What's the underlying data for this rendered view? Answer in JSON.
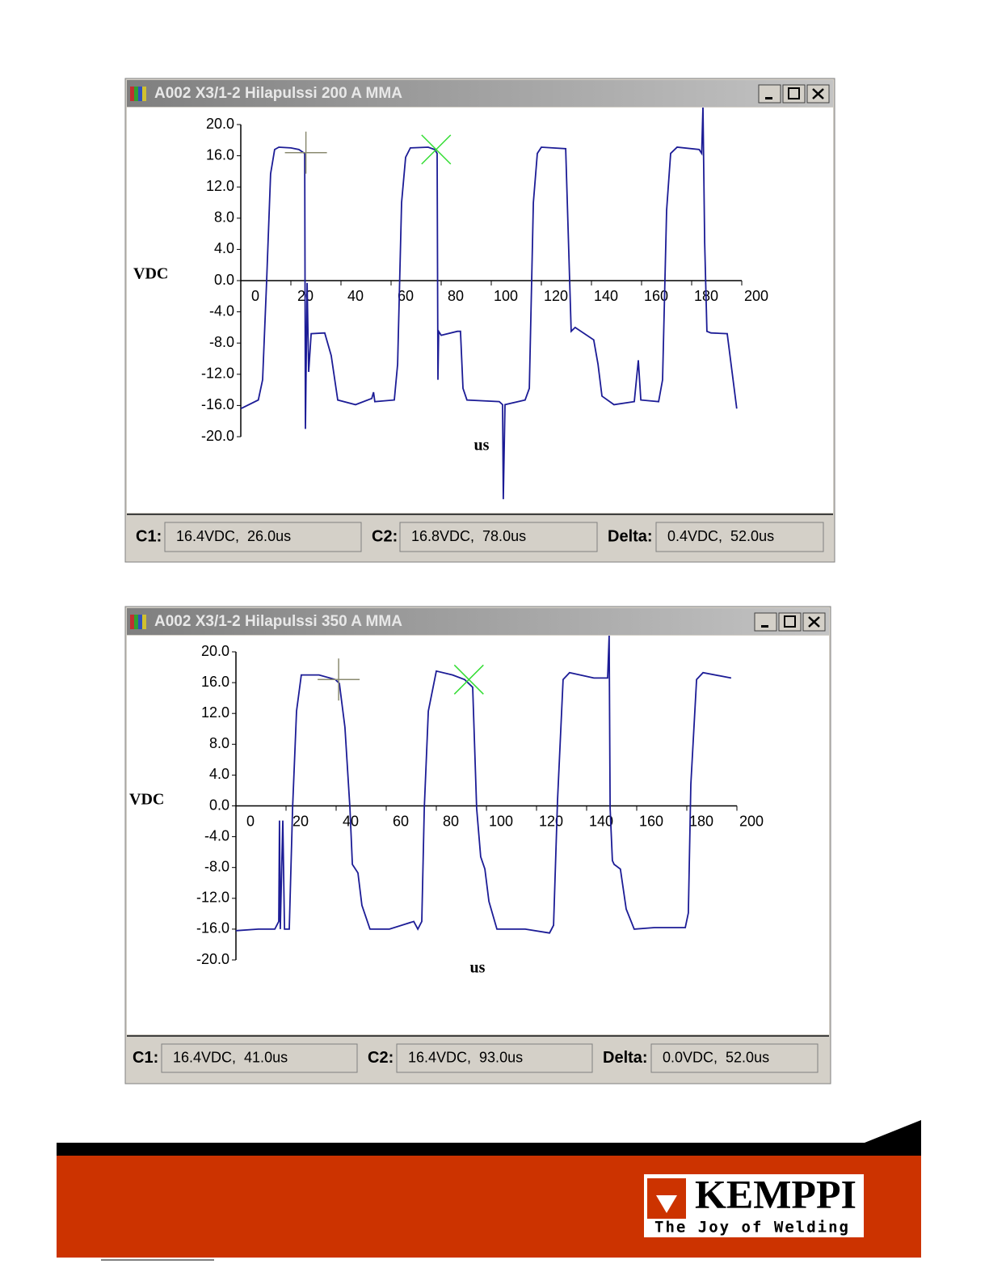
{
  "windows": [
    {
      "title": "A002 X3/1-2 Hilapulssi 200 A MMA",
      "chart_data": {
        "type": "line",
        "y_label": "VDC",
        "x_label": "us",
        "xlim": [
          0,
          200
        ],
        "xticks": [
          0,
          20,
          40,
          60,
          80,
          100,
          120,
          140,
          160,
          180,
          200
        ],
        "ylim": [
          -20,
          20
        ],
        "yticks": [
          {
            "value": 20,
            "label": "20.0"
          },
          {
            "value": 16,
            "label": "16.0"
          },
          {
            "value": 12,
            "label": "12.0"
          },
          {
            "value": 8,
            "label": "8.0"
          },
          {
            "value": 4,
            "label": "4.0"
          },
          {
            "value": 0,
            "label": "0.0"
          },
          {
            "value": -4,
            "label": "-4.0"
          },
          {
            "value": -8,
            "label": "-8.0"
          },
          {
            "value": -12,
            "label": "-12.0"
          },
          {
            "value": -16,
            "label": "-16.0"
          },
          {
            "value": -20,
            "label": "-20.0"
          }
        ],
        "series": [
          {
            "color": "#1c1c96",
            "x": [
              0,
              7,
              8.7,
              10.3,
              11.9,
              13.5,
              15.2,
              20,
              23.2,
              25.5,
              25.8,
              26.5,
              27.1,
              28.1,
              33.5,
              36.1,
              38.7,
              45.8,
              52.3,
              53,
              53.5,
              61.3,
              62.6,
              64.2,
              65.8,
              67.7,
              74.8,
              77.4,
              78.4,
              78.7,
              79,
              80,
              86.5,
              87.7,
              88.7,
              90.3,
              103.2,
              104.5,
              104.8,
              105.5,
              113.5,
              115.2,
              116.8,
              118.4,
              120,
              129.7,
              131.9,
              133.5,
              140.9,
              142.6,
              144.2,
              149,
              157.1,
              158.7,
              159.7,
              166.8,
              168.4,
              170,
              171.6,
              174.2,
              183,
              184,
              184.5,
              185.2,
              186.1,
              187.7,
              194.2,
              198
            ],
            "values": [
              -16.4,
              -15.3,
              -12.7,
              -0.3,
              13.7,
              16.8,
              17.1,
              17,
              16.8,
              16.3,
              -19,
              -0.3,
              -11.7,
              -6.8,
              -6.7,
              -9.6,
              -15.3,
              -15.9,
              -15.1,
              -14.3,
              -15.5,
              -15.3,
              -10.7,
              10,
              15.8,
              17,
              17.1,
              16.8,
              16.3,
              -12.7,
              -6.5,
              -7,
              -6.5,
              -6.5,
              -13.8,
              -15.3,
              -15.5,
              -15.9,
              -28,
              -15.9,
              -15.3,
              -13.8,
              10,
              16.3,
              17.1,
              16.9,
              -6.5,
              -6,
              -7.6,
              -10.7,
              -14.8,
              -15.9,
              -15.5,
              -10.2,
              -15.3,
              -15.5,
              -12.7,
              9,
              16.3,
              17.1,
              16.8,
              16.3,
              22.3,
              4.9,
              -6.5,
              -6.7,
              -6.8,
              -16.4
            ]
          }
        ],
        "cursors": [
          {
            "x": 26,
            "y": 16.4,
            "color": "#8a8a70"
          },
          {
            "x": 78,
            "y": 16.8,
            "color": "#33dd33"
          }
        ]
      },
      "status": [
        {
          "label": "C1:",
          "value": "16.4VDC,  26.0us"
        },
        {
          "label": "C2:",
          "value": "16.8VDC,  78.0us"
        },
        {
          "label": "Delta:",
          "value": "0.4VDC,  52.0us"
        }
      ]
    },
    {
      "title": "A002 X3/1-2 Hilapulssi 350 A MMA",
      "chart_data": {
        "type": "line",
        "y_label": "VDC",
        "x_label": "us",
        "xlim": [
          0,
          200
        ],
        "xticks": [
          0,
          20,
          40,
          60,
          80,
          100,
          120,
          140,
          160,
          180,
          200
        ],
        "ylim": [
          -20,
          20
        ],
        "yticks": [
          {
            "value": 20,
            "label": "20.0"
          },
          {
            "value": 16,
            "label": "16.0"
          },
          {
            "value": 12,
            "label": "12.0"
          },
          {
            "value": 8,
            "label": "8.0"
          },
          {
            "value": 4,
            "label": "4.0"
          },
          {
            "value": 0,
            "label": "0.0"
          },
          {
            "value": -4,
            "label": "-4.0"
          },
          {
            "value": -8,
            "label": "-8.0"
          },
          {
            "value": -12,
            "label": "-12.0"
          },
          {
            "value": -16,
            "label": "-16.0"
          },
          {
            "value": -20,
            "label": "-20.0"
          }
        ],
        "series": [
          {
            "color": "#1c1c96",
            "x": [
              0,
              9,
              15.5,
              17.1,
              17.4,
              17.7,
              18.7,
              19.4,
              21.3,
              22.6,
              24.2,
              26.1,
              33.2,
              39.7,
              41.3,
              43.5,
              45.5,
              46.5,
              48.7,
              50.3,
              53.5,
              61.3,
              71,
              72.6,
              74.2,
              75.2,
              76.8,
              80,
              86.5,
              91.3,
              94.5,
              96.1,
              97.7,
              99.4,
              101,
              104.2,
              115.5,
              125.2,
              126.8,
              128.4,
              130.6,
              133.2,
              142.9,
              148.4,
              149,
              149.4,
              150.3,
              151,
              153.5,
              155.8,
              159,
              167.1,
              179.4,
              180.6,
              181.6,
              183.9,
              186.5,
              197.7
            ],
            "values": [
              -16.2,
              -16,
              -16,
              -15,
              -1.9,
              -16,
              -1.9,
              -16,
              -16,
              -0.3,
              12.3,
              17,
              17,
              16.4,
              15.9,
              10.2,
              -0.3,
              -7.6,
              -8.7,
              -12.9,
              -16,
              -16,
              -15,
              -16,
              -15,
              -0.3,
              12.3,
              17.5,
              17,
              16.4,
              15.4,
              -0.3,
              -6.6,
              -8.2,
              -12.4,
              -16,
              -16,
              -16.5,
              -15.5,
              0.7,
              16.4,
              17.3,
              16.6,
              16.6,
              22.1,
              -0.3,
              -7.1,
              -7.6,
              -8.2,
              -13.4,
              -16,
              -15.8,
              -15.8,
              -13.9,
              2.8,
              16.4,
              17.3,
              16.6
            ]
          }
        ],
        "cursors": [
          {
            "x": 41,
            "y": 16.4,
            "color": "#8a8a70"
          },
          {
            "x": 93,
            "y": 16.4,
            "color": "#33dd33"
          }
        ]
      },
      "status": [
        {
          "label": "C1:",
          "value": "16.4VDC,  41.0us"
        },
        {
          "label": "C2:",
          "value": "16.4VDC,  93.0us"
        },
        {
          "label": "Delta:",
          "value": "0.0VDC,  52.0us"
        }
      ]
    }
  ],
  "footer": {
    "brand": "KEMPPI",
    "tagline": "The Joy of Welding"
  }
}
